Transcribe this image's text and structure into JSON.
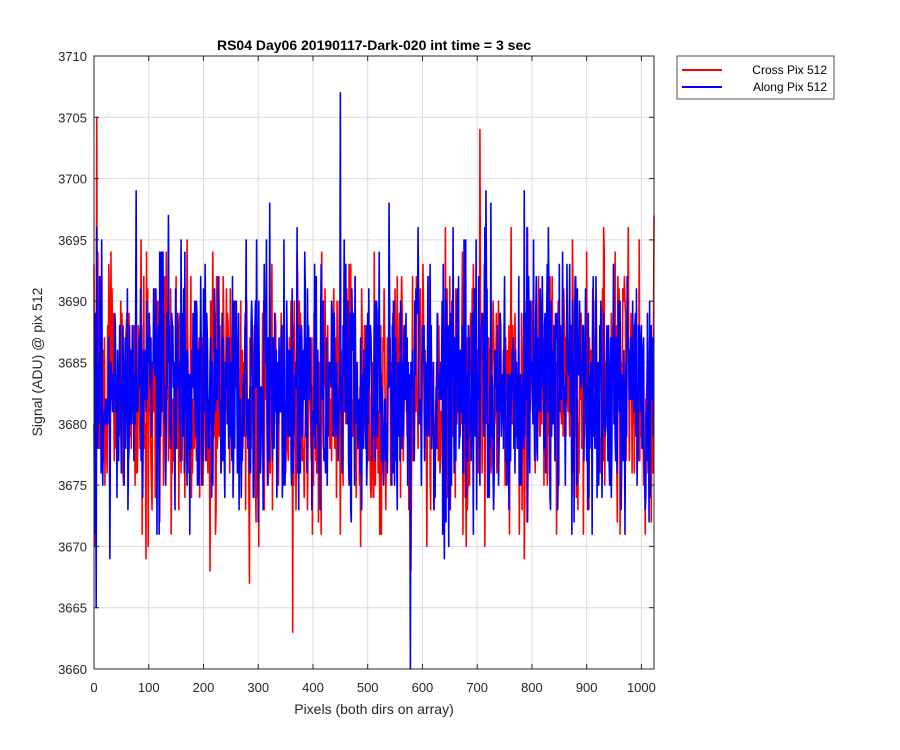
{
  "chart_data": {
    "type": "line",
    "title": "RS04 Day06 20190117-Dark-020 int time = 3 sec",
    "xlabel": "Pixels (both dirs on array)",
    "ylabel": "Signal (ADU) @ pix 512",
    "xlim": [
      0,
      1023
    ],
    "ylim": [
      3660,
      3710
    ],
    "xticks": [
      0,
      100,
      200,
      300,
      400,
      500,
      600,
      700,
      800,
      900,
      1000
    ],
    "yticks": [
      3660,
      3665,
      3670,
      3675,
      3680,
      3685,
      3690,
      3695,
      3700,
      3705,
      3710
    ],
    "grid": true,
    "box": true,
    "legend_position": "outside-top-right",
    "background_color": "#ffffff",
    "axes_color": "#262626",
    "grid_color": "#dcdcdc",
    "series": [
      {
        "name": "Cross Pix 512",
        "color": "#ff0000",
        "n": 1024,
        "mean": 3683,
        "std": 5.5,
        "min": 3663,
        "max": 3705,
        "notable_points": [
          {
            "x": 1,
            "y": 3670
          },
          {
            "x": 5,
            "y": 3705
          },
          {
            "x": 363,
            "y": 3663
          },
          {
            "x": 705,
            "y": 3704
          },
          {
            "x": 1023,
            "y": 3697
          }
        ]
      },
      {
        "name": "Along Pix 512",
        "color": "#0000ff",
        "n": 1024,
        "mean": 3683,
        "std": 5.5,
        "min": 3660,
        "max": 3707,
        "notable_points": [
          {
            "x": 1,
            "y": 3671
          },
          {
            "x": 5,
            "y": 3696
          },
          {
            "x": 450,
            "y": 3707
          },
          {
            "x": 578,
            "y": 3660
          },
          {
            "x": 1023,
            "y": 3679
          }
        ]
      }
    ]
  }
}
